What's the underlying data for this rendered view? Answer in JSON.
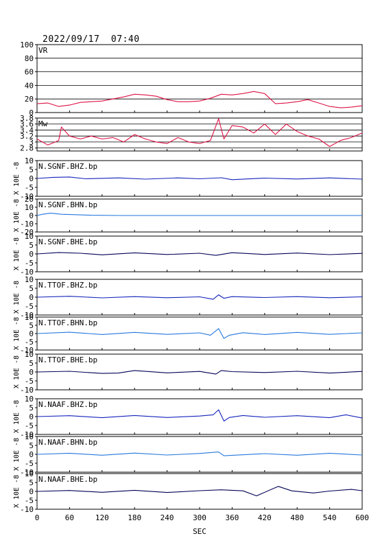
{
  "header": {
    "datetime": "2022/09/17  07:40"
  },
  "chart_data": {
    "type": "line",
    "x_axis": {
      "label": "SEC",
      "range": [
        0,
        600
      ],
      "ticks": [
        0,
        60,
        120,
        180,
        240,
        300,
        360,
        420,
        480,
        540,
        600
      ]
    },
    "panels": [
      {
        "label": "VR",
        "ylim": [
          0,
          100
        ],
        "ticks": [
          0,
          20,
          40,
          60,
          80,
          100
        ],
        "grid": true,
        "color": "#dd1144",
        "points": [
          [
            0,
            13
          ],
          [
            20,
            14
          ],
          [
            40,
            9
          ],
          [
            60,
            11
          ],
          [
            80,
            15
          ],
          [
            100,
            16
          ],
          [
            120,
            17
          ],
          [
            140,
            20
          ],
          [
            160,
            23
          ],
          [
            180,
            27
          ],
          [
            200,
            26
          ],
          [
            220,
            24
          ],
          [
            240,
            19
          ],
          [
            260,
            16
          ],
          [
            280,
            16
          ],
          [
            300,
            17
          ],
          [
            320,
            21
          ],
          [
            340,
            27
          ],
          [
            360,
            26
          ],
          [
            380,
            28
          ],
          [
            400,
            31
          ],
          [
            420,
            28
          ],
          [
            440,
            13
          ],
          [
            460,
            14
          ],
          [
            480,
            16
          ],
          [
            500,
            19
          ],
          [
            520,
            14
          ],
          [
            540,
            9
          ],
          [
            560,
            7
          ],
          [
            580,
            8
          ],
          [
            600,
            10
          ]
        ]
      },
      {
        "label": "Mw",
        "ylim": [
          2.7,
          3.8
        ],
        "ticks": [
          2.8,
          3.0,
          3.2,
          3.4,
          3.6,
          3.8
        ],
        "grid": true,
        "color": "#dd1144",
        "points": [
          [
            0,
            3.1
          ],
          [
            20,
            2.9
          ],
          [
            40,
            3.05
          ],
          [
            45,
            3.5
          ],
          [
            60,
            3.2
          ],
          [
            80,
            3.1
          ],
          [
            100,
            3.2
          ],
          [
            120,
            3.1
          ],
          [
            140,
            3.15
          ],
          [
            160,
            3.0
          ],
          [
            180,
            3.25
          ],
          [
            200,
            3.1
          ],
          [
            220,
            3.0
          ],
          [
            240,
            2.95
          ],
          [
            260,
            3.15
          ],
          [
            280,
            3.0
          ],
          [
            300,
            2.95
          ],
          [
            320,
            3.05
          ],
          [
            335,
            3.78
          ],
          [
            345,
            3.1
          ],
          [
            360,
            3.55
          ],
          [
            380,
            3.5
          ],
          [
            400,
            3.3
          ],
          [
            420,
            3.6
          ],
          [
            440,
            3.25
          ],
          [
            460,
            3.6
          ],
          [
            480,
            3.35
          ],
          [
            500,
            3.2
          ],
          [
            520,
            3.1
          ],
          [
            540,
            2.85
          ],
          [
            560,
            3.05
          ],
          [
            580,
            3.15
          ],
          [
            600,
            3.3
          ]
        ]
      },
      {
        "label": "N.SGNF.BHZ.bp",
        "unit_label": "X 10E -8",
        "ylim": [
          -10,
          10
        ],
        "ticks": [
          -10,
          -5,
          0,
          5,
          10
        ],
        "color": "#1122bb",
        "points": [
          [
            0,
            0
          ],
          [
            30,
            0.6
          ],
          [
            60,
            0.8
          ],
          [
            90,
            -0.2
          ],
          [
            150,
            0.3
          ],
          [
            200,
            -0.4
          ],
          [
            260,
            0.3
          ],
          [
            300,
            -0.2
          ],
          [
            340,
            0.4
          ],
          [
            360,
            -0.7
          ],
          [
            420,
            0.2
          ],
          [
            480,
            -0.3
          ],
          [
            540,
            0.3
          ],
          [
            600,
            -0.4
          ]
        ]
      },
      {
        "label": "N.SGNF.BHN.bp",
        "unit_label": "X 10E -8",
        "ylim": [
          -20,
          20
        ],
        "ticks": [
          -20,
          -10,
          0,
          10,
          20
        ],
        "color": "#2277dd",
        "points": [
          [
            0,
            0
          ],
          [
            10,
            1.5
          ],
          [
            25,
            2.8
          ],
          [
            45,
            1.5
          ],
          [
            70,
            1
          ],
          [
            100,
            0.3
          ],
          [
            150,
            0
          ],
          [
            250,
            0
          ],
          [
            400,
            0
          ],
          [
            600,
            0
          ]
        ]
      },
      {
        "label": "N.SGNF.BHE.bp",
        "unit_label": "X 10E -8",
        "ylim": [
          -10,
          10
        ],
        "ticks": [
          -10,
          -5,
          0,
          5,
          10
        ],
        "color": "#000055",
        "points": [
          [
            0,
            0
          ],
          [
            40,
            0.8
          ],
          [
            80,
            0.4
          ],
          [
            120,
            -0.5
          ],
          [
            180,
            0.6
          ],
          [
            240,
            -0.3
          ],
          [
            300,
            0.4
          ],
          [
            330,
            -0.8
          ],
          [
            360,
            0.7
          ],
          [
            420,
            -0.3
          ],
          [
            480,
            0.5
          ],
          [
            540,
            -0.4
          ],
          [
            600,
            0.3
          ]
        ]
      },
      {
        "label": "N.TTOF.BHZ.bp",
        "unit_label": "X 10E -8",
        "ylim": [
          -10,
          10
        ],
        "ticks": [
          -10,
          -5,
          0,
          5,
          10
        ],
        "color": "#1122bb",
        "points": [
          [
            0,
            0
          ],
          [
            60,
            0.5
          ],
          [
            120,
            -0.4
          ],
          [
            180,
            0.3
          ],
          [
            240,
            -0.3
          ],
          [
            300,
            0.2
          ],
          [
            325,
            -1.2
          ],
          [
            335,
            1.3
          ],
          [
            345,
            -0.6
          ],
          [
            360,
            0.3
          ],
          [
            420,
            -0.2
          ],
          [
            480,
            0.3
          ],
          [
            540,
            -0.3
          ],
          [
            600,
            0.2
          ]
        ]
      },
      {
        "label": "N.TTOF.BHN.bp",
        "unit_label": "X 10E -8",
        "ylim": [
          -10,
          10
        ],
        "ticks": [
          -10,
          -5,
          0,
          5,
          10
        ],
        "color": "#2277dd",
        "points": [
          [
            0,
            0
          ],
          [
            60,
            0.8
          ],
          [
            120,
            -0.6
          ],
          [
            180,
            0.7
          ],
          [
            240,
            -0.5
          ],
          [
            300,
            0.4
          ],
          [
            320,
            -1
          ],
          [
            335,
            3
          ],
          [
            345,
            -3
          ],
          [
            355,
            -1
          ],
          [
            380,
            0.5
          ],
          [
            420,
            -0.6
          ],
          [
            480,
            0.7
          ],
          [
            540,
            -0.5
          ],
          [
            600,
            0.4
          ]
        ]
      },
      {
        "label": "N.TTOF.BHE.bp",
        "unit_label": "X 10E -8",
        "ylim": [
          -10,
          10
        ],
        "ticks": [
          -10,
          -5,
          0,
          5,
          10
        ],
        "color": "#000055",
        "points": [
          [
            0,
            0
          ],
          [
            60,
            0.4
          ],
          [
            120,
            -0.8
          ],
          [
            150,
            -0.6
          ],
          [
            180,
            0.8
          ],
          [
            240,
            -0.5
          ],
          [
            300,
            0.3
          ],
          [
            330,
            -1.2
          ],
          [
            340,
            0.8
          ],
          [
            360,
            0.2
          ],
          [
            420,
            -0.3
          ],
          [
            480,
            0.4
          ],
          [
            540,
            -0.6
          ],
          [
            600,
            0.3
          ]
        ]
      },
      {
        "label": "N.NAAF.BHZ.bp",
        "unit_label": "X 10E -8",
        "ylim": [
          -10,
          10
        ],
        "ticks": [
          -10,
          -5,
          0,
          5,
          10
        ],
        "color": "#1122bb",
        "points": [
          [
            0,
            0
          ],
          [
            60,
            0.5
          ],
          [
            120,
            -0.6
          ],
          [
            180,
            0.6
          ],
          [
            240,
            -0.5
          ],
          [
            300,
            0.3
          ],
          [
            325,
            1
          ],
          [
            335,
            3.8
          ],
          [
            345,
            -2.5
          ],
          [
            355,
            -0.5
          ],
          [
            380,
            0.6
          ],
          [
            420,
            -0.4
          ],
          [
            480,
            0.5
          ],
          [
            540,
            -0.6
          ],
          [
            570,
            1
          ],
          [
            600,
            -0.8
          ]
        ]
      },
      {
        "label": "N.NAAF.BHN.bp",
        "unit_label": "X 10E -8",
        "ylim": [
          -10,
          10
        ],
        "ticks": [
          -10,
          -5,
          0,
          5,
          10
        ],
        "color": "#2277dd",
        "points": [
          [
            0,
            0
          ],
          [
            60,
            0.6
          ],
          [
            120,
            -0.5
          ],
          [
            180,
            0.7
          ],
          [
            240,
            -0.4
          ],
          [
            300,
            0.5
          ],
          [
            335,
            1.3
          ],
          [
            345,
            -0.8
          ],
          [
            420,
            0.4
          ],
          [
            480,
            -0.5
          ],
          [
            540,
            0.6
          ],
          [
            600,
            -0.4
          ]
        ]
      },
      {
        "label": "N.NAAF.BHE.bp",
        "unit_label": "X 10E -8",
        "ylim": [
          -10,
          10
        ],
        "ticks": [
          -10,
          -5,
          0,
          5,
          10
        ],
        "color": "#000055",
        "points": [
          [
            0,
            0
          ],
          [
            60,
            0.5
          ],
          [
            120,
            -0.5
          ],
          [
            180,
            0.6
          ],
          [
            240,
            -0.6
          ],
          [
            300,
            0.4
          ],
          [
            340,
            0.9
          ],
          [
            380,
            0.3
          ],
          [
            405,
            -2.5
          ],
          [
            445,
            2.8
          ],
          [
            470,
            0.3
          ],
          [
            510,
            -0.9
          ],
          [
            540,
            0.2
          ],
          [
            580,
            1.1
          ],
          [
            600,
            0.4
          ]
        ]
      }
    ]
  }
}
